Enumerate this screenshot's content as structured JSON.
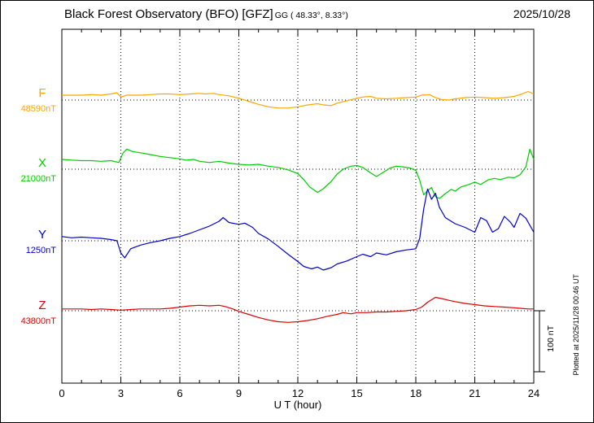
{
  "header": {
    "title": "Black Forest Observatory (BFO)  [GFZ]",
    "coords": "GG ( 48.33°,  8.33°)",
    "date": "2025/10/28"
  },
  "annotations": {
    "plotted_at": "Plotted at 2025/11/28 00:46 UT",
    "scale_label": "100 nT"
  },
  "chart_data": {
    "type": "line",
    "title": "Black Forest Observatory (BFO) [GFZ] magnetogram 2025/10/28",
    "xlabel": "U T (hour)",
    "x_range": [
      0,
      24
    ],
    "x_ticks": [
      0,
      3,
      6,
      9,
      12,
      15,
      18,
      21,
      24
    ],
    "x_minor_tick_step": 1,
    "grid": "dotted vertical lines at 3-hour marks; dotted horizontal baseline per component",
    "legend_position": "left margin, one colored label per stacked trace",
    "scale_bar": {
      "label": "100 nT",
      "nT": 100
    },
    "note": "Four stacked traces F,X,Y,Z; point values are nT offsets from each component baseline",
    "series": [
      {
        "name": "F",
        "baseline_label": "48590nT",
        "baseline_nT": 48590,
        "color": "#FFA500",
        "points": [
          [
            0,
            8
          ],
          [
            0.5,
            8
          ],
          [
            1,
            8
          ],
          [
            1.5,
            9
          ],
          [
            2,
            8
          ],
          [
            2.5,
            10
          ],
          [
            2.8,
            12
          ],
          [
            3,
            5
          ],
          [
            3.3,
            8
          ],
          [
            3.7,
            8
          ],
          [
            4,
            8
          ],
          [
            4.5,
            9
          ],
          [
            5,
            10
          ],
          [
            5.5,
            10
          ],
          [
            6,
            9
          ],
          [
            6.5,
            10
          ],
          [
            7,
            11
          ],
          [
            7.3,
            10
          ],
          [
            7.7,
            11
          ],
          [
            8,
            9
          ],
          [
            8.5,
            7
          ],
          [
            9,
            3
          ],
          [
            9.5,
            -2
          ],
          [
            10,
            -7
          ],
          [
            10.5,
            -11
          ],
          [
            11,
            -13
          ],
          [
            11.5,
            -13
          ],
          [
            12,
            -11
          ],
          [
            12.5,
            -8
          ],
          [
            13,
            -6
          ],
          [
            13.3,
            -8
          ],
          [
            13.7,
            -9
          ],
          [
            14,
            -5
          ],
          [
            14.5,
            -1
          ],
          [
            15,
            3
          ],
          [
            15.3,
            5
          ],
          [
            15.7,
            6
          ],
          [
            16,
            3
          ],
          [
            16.5,
            2
          ],
          [
            17,
            3
          ],
          [
            17.5,
            4
          ],
          [
            18,
            5
          ],
          [
            18.3,
            8
          ],
          [
            18.7,
            9
          ],
          [
            19,
            4
          ],
          [
            19.3,
            1
          ],
          [
            19.7,
            0
          ],
          [
            20,
            2
          ],
          [
            20.5,
            4
          ],
          [
            21,
            5
          ],
          [
            21.5,
            4
          ],
          [
            22,
            3
          ],
          [
            22.5,
            4
          ],
          [
            23,
            6
          ],
          [
            23.3,
            9
          ],
          [
            23.7,
            14
          ],
          [
            24,
            10
          ]
        ]
      },
      {
        "name": "X",
        "baseline_label": "21000nT",
        "baseline_nT": 21000,
        "color": "#00CC00",
        "points": [
          [
            0,
            16
          ],
          [
            0.5,
            15
          ],
          [
            1,
            14
          ],
          [
            1.5,
            14
          ],
          [
            2,
            13
          ],
          [
            2.5,
            14
          ],
          [
            2.9,
            11
          ],
          [
            3.1,
            26
          ],
          [
            3.3,
            33
          ],
          [
            3.6,
            29
          ],
          [
            4,
            27
          ],
          [
            4.5,
            24
          ],
          [
            5,
            21
          ],
          [
            5.5,
            19
          ],
          [
            6,
            17
          ],
          [
            6.3,
            15
          ],
          [
            6.7,
            16
          ],
          [
            7,
            13
          ],
          [
            7.5,
            11
          ],
          [
            8,
            13
          ],
          [
            8.5,
            10
          ],
          [
            9,
            8
          ],
          [
            9.5,
            7
          ],
          [
            10,
            8
          ],
          [
            10.5,
            5
          ],
          [
            11,
            3
          ],
          [
            11.5,
            -1
          ],
          [
            12,
            -7
          ],
          [
            12.3,
            -17
          ],
          [
            12.6,
            -29
          ],
          [
            13,
            -38
          ],
          [
            13.3,
            -32
          ],
          [
            13.7,
            -20
          ],
          [
            14,
            -8
          ],
          [
            14.3,
            0
          ],
          [
            14.7,
            5
          ],
          [
            15,
            6
          ],
          [
            15.3,
            3
          ],
          [
            15.7,
            -6
          ],
          [
            16,
            -12
          ],
          [
            16.3,
            -6
          ],
          [
            16.7,
            2
          ],
          [
            17,
            5
          ],
          [
            17.3,
            4
          ],
          [
            17.7,
            2
          ],
          [
            18,
            -2
          ],
          [
            18.2,
            -18
          ],
          [
            18.4,
            -42
          ],
          [
            18.6,
            -35
          ],
          [
            18.8,
            -30
          ],
          [
            19,
            -45
          ],
          [
            19.2,
            -48
          ],
          [
            19.5,
            -40
          ],
          [
            19.8,
            -33
          ],
          [
            20,
            -36
          ],
          [
            20.3,
            -29
          ],
          [
            20.7,
            -25
          ],
          [
            21,
            -21
          ],
          [
            21.3,
            -25
          ],
          [
            21.7,
            -17
          ],
          [
            22,
            -15
          ],
          [
            22.3,
            -17
          ],
          [
            22.7,
            -13
          ],
          [
            23,
            -14
          ],
          [
            23.3,
            -9
          ],
          [
            23.6,
            4
          ],
          [
            23.8,
            33
          ],
          [
            24,
            16
          ]
        ]
      },
      {
        "name": "Y",
        "baseline_label": "1250nT",
        "baseline_nT": 1250,
        "color": "#0000CC",
        "points": [
          [
            0,
            7
          ],
          [
            0.5,
            5
          ],
          [
            1,
            6
          ],
          [
            1.5,
            5
          ],
          [
            2,
            4
          ],
          [
            2.5,
            2
          ],
          [
            2.8,
            0
          ],
          [
            3,
            -20
          ],
          [
            3.2,
            -28
          ],
          [
            3.5,
            -13
          ],
          [
            4,
            -7
          ],
          [
            4.5,
            -3
          ],
          [
            5,
            0
          ],
          [
            5.5,
            4
          ],
          [
            6,
            7
          ],
          [
            6.5,
            12
          ],
          [
            7,
            18
          ],
          [
            7.5,
            24
          ],
          [
            8,
            32
          ],
          [
            8.2,
            38
          ],
          [
            8.5,
            30
          ],
          [
            9,
            27
          ],
          [
            9.3,
            29
          ],
          [
            9.7,
            22
          ],
          [
            10,
            12
          ],
          [
            10.5,
            3
          ],
          [
            11,
            -9
          ],
          [
            11.5,
            -22
          ],
          [
            12,
            -34
          ],
          [
            12.3,
            -42
          ],
          [
            12.7,
            -46
          ],
          [
            13,
            -43
          ],
          [
            13.3,
            -48
          ],
          [
            13.7,
            -44
          ],
          [
            14,
            -38
          ],
          [
            14.5,
            -33
          ],
          [
            15,
            -26
          ],
          [
            15.3,
            -22
          ],
          [
            15.7,
            -26
          ],
          [
            16,
            -20
          ],
          [
            16.5,
            -23
          ],
          [
            17,
            -18
          ],
          [
            17.5,
            -15
          ],
          [
            18,
            -13
          ],
          [
            18.2,
            4
          ],
          [
            18.4,
            52
          ],
          [
            18.6,
            85
          ],
          [
            18.8,
            68
          ],
          [
            19,
            78
          ],
          [
            19.2,
            55
          ],
          [
            19.5,
            38
          ],
          [
            20,
            28
          ],
          [
            20.5,
            22
          ],
          [
            21,
            14
          ],
          [
            21.3,
            38
          ],
          [
            21.6,
            33
          ],
          [
            21.9,
            14
          ],
          [
            22.2,
            20
          ],
          [
            22.5,
            40
          ],
          [
            22.8,
            31
          ],
          [
            23,
            22
          ],
          [
            23.3,
            45
          ],
          [
            23.6,
            37
          ],
          [
            24,
            14
          ]
        ]
      },
      {
        "name": "Z",
        "baseline_label": "43800nT",
        "baseline_nT": 43800,
        "color": "#DD0000",
        "points": [
          [
            0,
            3
          ],
          [
            0.5,
            3
          ],
          [
            1,
            3
          ],
          [
            1.5,
            2
          ],
          [
            2,
            3
          ],
          [
            2.5,
            2
          ],
          [
            3,
            1
          ],
          [
            3.5,
            2
          ],
          [
            4,
            3
          ],
          [
            4.5,
            3
          ],
          [
            5,
            3
          ],
          [
            5.5,
            4
          ],
          [
            6,
            6
          ],
          [
            6.5,
            8
          ],
          [
            7,
            9
          ],
          [
            7.5,
            8
          ],
          [
            8,
            9
          ],
          [
            8.3,
            7
          ],
          [
            8.7,
            3
          ],
          [
            9,
            -1
          ],
          [
            9.5,
            -6
          ],
          [
            10,
            -11
          ],
          [
            10.5,
            -15
          ],
          [
            11,
            -18
          ],
          [
            11.5,
            -19
          ],
          [
            12,
            -18
          ],
          [
            12.5,
            -16
          ],
          [
            13,
            -13
          ],
          [
            13.5,
            -9
          ],
          [
            14,
            -6
          ],
          [
            14.3,
            -3
          ],
          [
            14.7,
            -5
          ],
          [
            15,
            -3
          ],
          [
            15.5,
            -3
          ],
          [
            16,
            -2
          ],
          [
            16.5,
            -2
          ],
          [
            17,
            -1
          ],
          [
            17.5,
            0
          ],
          [
            18,
            2
          ],
          [
            18.3,
            6
          ],
          [
            18.6,
            14
          ],
          [
            19,
            22
          ],
          [
            19.3,
            20
          ],
          [
            19.7,
            17
          ],
          [
            20,
            15
          ],
          [
            20.5,
            12
          ],
          [
            21,
            10
          ],
          [
            21.5,
            8
          ],
          [
            22,
            7
          ],
          [
            22.5,
            6
          ],
          [
            23,
            5
          ],
          [
            23.3,
            4
          ],
          [
            23.7,
            3
          ],
          [
            24,
            3
          ]
        ]
      }
    ]
  }
}
